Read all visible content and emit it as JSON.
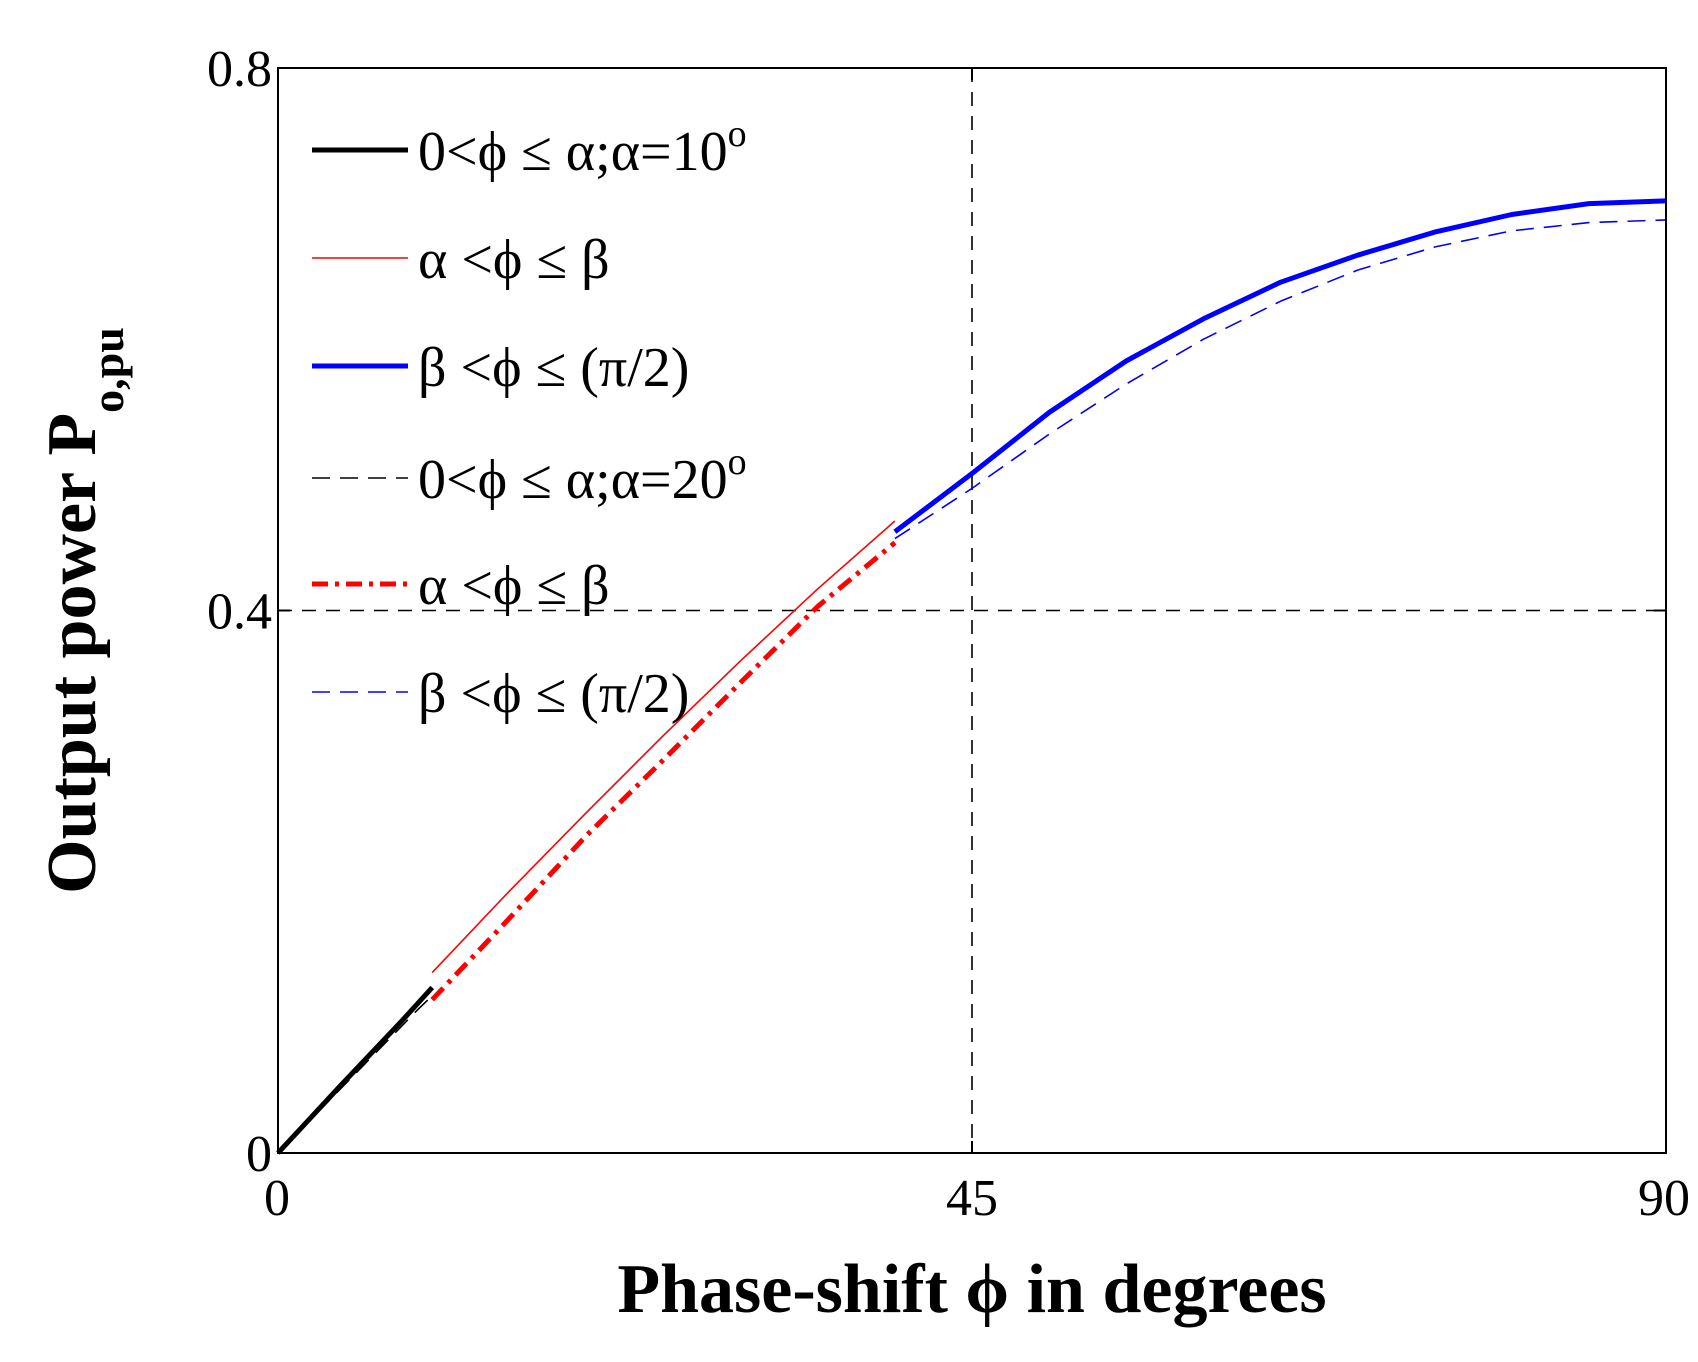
{
  "chart_data": {
    "type": "line",
    "xlabel": "Phase-shift ϕ in degrees",
    "ylabel_main": "Output power P",
    "ylabel_sub": "o,pu",
    "xlim": [
      0,
      90
    ],
    "ylim": [
      0,
      0.8
    ],
    "x_ticks": [
      0,
      45,
      90
    ],
    "x_tick_labels": [
      "0",
      "45",
      "90"
    ],
    "y_ticks": [
      0,
      0.4,
      0.8
    ],
    "y_tick_labels": [
      "0",
      "0.4",
      "0.8"
    ],
    "reference_lines": {
      "x": 45,
      "y": 0.4
    },
    "grid": false,
    "legend_position": "top-left",
    "series": [
      {
        "name": "0<ϕ ≤ α;α=10",
        "superscript": "o",
        "color": "#000000",
        "style": "solid-thick",
        "x": [
          0,
          2,
          4,
          6,
          8,
          10
        ],
        "y": [
          0,
          0.0245,
          0.049,
          0.073,
          0.097,
          0.122
        ]
      },
      {
        "name": "α <ϕ ≤ β",
        "color": "#ff0000",
        "style": "solid-thin",
        "x": [
          10,
          15,
          20,
          25,
          30,
          35,
          40
        ],
        "y": [
          0.133,
          0.193,
          0.251,
          0.308,
          0.363,
          0.416,
          0.466
        ]
      },
      {
        "name": "β <ϕ ≤ (π/2)",
        "color": "#0000ff",
        "style": "solid-thick",
        "x": [
          40,
          45,
          50,
          55,
          60,
          65,
          70,
          75,
          80,
          85,
          90
        ],
        "y": [
          0.458,
          0.501,
          0.546,
          0.584,
          0.615,
          0.642,
          0.662,
          0.679,
          0.692,
          0.7,
          0.702
        ]
      },
      {
        "name": "0<ϕ ≤ α;α=20",
        "superscript": "o",
        "color": "#000000",
        "style": "dashed-thin",
        "x": [
          0,
          3,
          6,
          9,
          10
        ],
        "y": [
          0,
          0.035,
          0.07,
          0.105,
          0.116
        ]
      },
      {
        "name": "α <ϕ ≤ β",
        "color": "#ff0000",
        "style": "dashdot-thick",
        "x": [
          10,
          15,
          20,
          25,
          30,
          35,
          40
        ],
        "y": [
          0.113,
          0.173,
          0.234,
          0.29,
          0.347,
          0.403,
          0.45
        ]
      },
      {
        "name": "β <ϕ ≤ (π/2)",
        "color": "#0000ff",
        "style": "dashed-thin",
        "x": [
          40,
          45,
          50,
          55,
          60,
          65,
          70,
          75,
          80,
          85,
          90
        ],
        "y": [
          0.453,
          0.49,
          0.53,
          0.567,
          0.6,
          0.628,
          0.651,
          0.668,
          0.68,
          0.686,
          0.688
        ]
      }
    ]
  }
}
